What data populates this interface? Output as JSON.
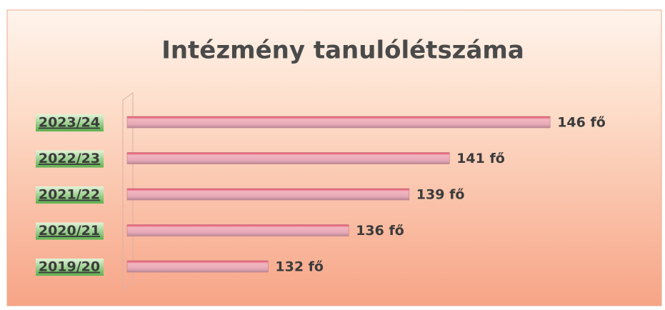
{
  "chart_data": {
    "type": "bar",
    "orientation": "horizontal",
    "title": "Intézmény tanulólétszáma",
    "categories": [
      "2023/24",
      "2022/23",
      "2021/22",
      "2020/21",
      "2019/20"
    ],
    "values": [
      146,
      141,
      139,
      136,
      132
    ],
    "value_labels": [
      "146 fő",
      "141 fő",
      "139 fő",
      "136 fő",
      "132 fő"
    ],
    "color": "#e8a0b0",
    "xlim": [
      125,
      150
    ]
  }
}
